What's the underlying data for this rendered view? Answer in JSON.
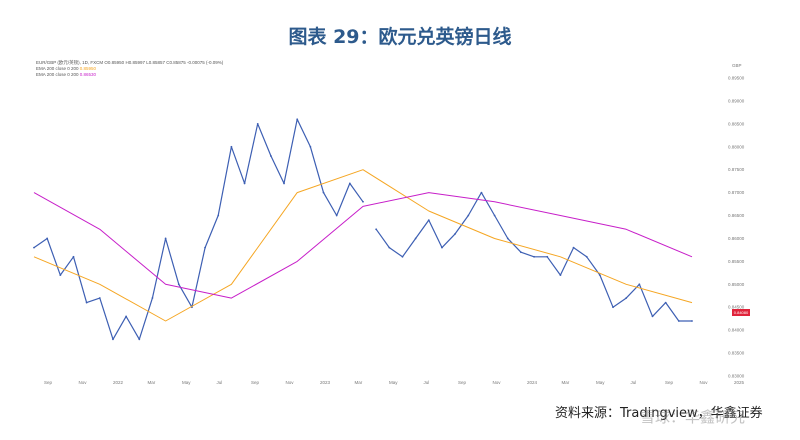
{
  "title": "图表 29：欧元兑英镑日线",
  "source": "资料来源：Tradingview，华鑫证券",
  "watermark": "雪球：华鑫研究",
  "legend": {
    "line1": "EUR/GBP (欧元/英镑), 1D, FXCM  O0.85950  H0.85997  L0.85857  C0.85875  -0.00075 (-0.09%)",
    "line2": "EMA 200 close 0  200",
    "line2_value": "0.85950",
    "line3": "EMA 200 close 0  200",
    "line3_value": "0.86530"
  },
  "colors": {
    "price": "#3d5fb3",
    "ema_orange": "#f5a623",
    "ema_purple": "#c71fc9",
    "last_price": "#e0243b",
    "title": "#2d5a8c"
  },
  "chart_data": {
    "type": "line",
    "y_axis_label": "GBP",
    "ylim": [
      0.83,
      0.895
    ],
    "y_ticks": [
      "0.89500",
      "0.89000",
      "0.88500",
      "0.88000",
      "0.87500",
      "0.87000",
      "0.86500",
      "0.86000",
      "0.85500",
      "0.85000",
      "0.84500",
      "0.84000",
      "0.83500",
      "0.83000"
    ],
    "x_tick_labels": [
      "Sep",
      "Nov",
      "2022",
      "Mar",
      "May",
      "Jul",
      "Sep",
      "Nov",
      "2023",
      "Mar",
      "May",
      "Jul",
      "Sep",
      "Nov",
      "2024",
      "Mar",
      "May",
      "Jul",
      "Sep",
      "Nov",
      "2025"
    ],
    "last_price": "0.84080",
    "grid": false,
    "series": [
      {
        "name": "EUR/GBP",
        "x": [
          0,
          4,
          8,
          12,
          16,
          20,
          24,
          28,
          32,
          36,
          40,
          44,
          48,
          52,
          56,
          60,
          64,
          68,
          72,
          76,
          80,
          84,
          88,
          92,
          96,
          100
        ],
        "y": [
          0.858,
          0.86,
          0.852,
          0.856,
          0.846,
          0.847,
          0.838,
          0.843,
          0.838,
          0.847,
          0.86,
          0.85,
          0.845,
          0.858,
          0.865,
          0.88,
          0.872,
          0.885,
          0.878,
          0.872,
          0.886,
          0.88,
          0.87,
          0.865,
          0.872,
          0.868
        ]
      },
      {
        "name": "EUR/GBP (cont.)",
        "x": [
          104,
          108,
          112,
          116,
          120,
          124,
          128,
          132,
          136,
          140,
          144,
          148,
          152,
          156,
          160,
          164,
          168,
          172,
          176,
          180,
          184,
          188,
          192,
          196,
          200
        ],
        "y": [
          0.862,
          0.858,
          0.856,
          0.86,
          0.864,
          0.858,
          0.861,
          0.865,
          0.87,
          0.865,
          0.86,
          0.857,
          0.856,
          0.856,
          0.852,
          0.858,
          0.856,
          0.852,
          0.845,
          0.847,
          0.85,
          0.843,
          0.846,
          0.842,
          0.842
        ]
      },
      {
        "name": "EMA 200 (orange)",
        "x": [
          0,
          20,
          40,
          60,
          80,
          100,
          120,
          140,
          160,
          180,
          200
        ],
        "y": [
          0.856,
          0.85,
          0.842,
          0.85,
          0.87,
          0.875,
          0.866,
          0.86,
          0.856,
          0.85,
          0.846
        ]
      },
      {
        "name": "EMA 200 (purple)",
        "x": [
          0,
          20,
          40,
          60,
          80,
          100,
          120,
          140,
          160,
          180,
          200
        ],
        "y": [
          0.87,
          0.862,
          0.85,
          0.847,
          0.855,
          0.867,
          0.87,
          0.868,
          0.865,
          0.862,
          0.856
        ]
      }
    ]
  }
}
